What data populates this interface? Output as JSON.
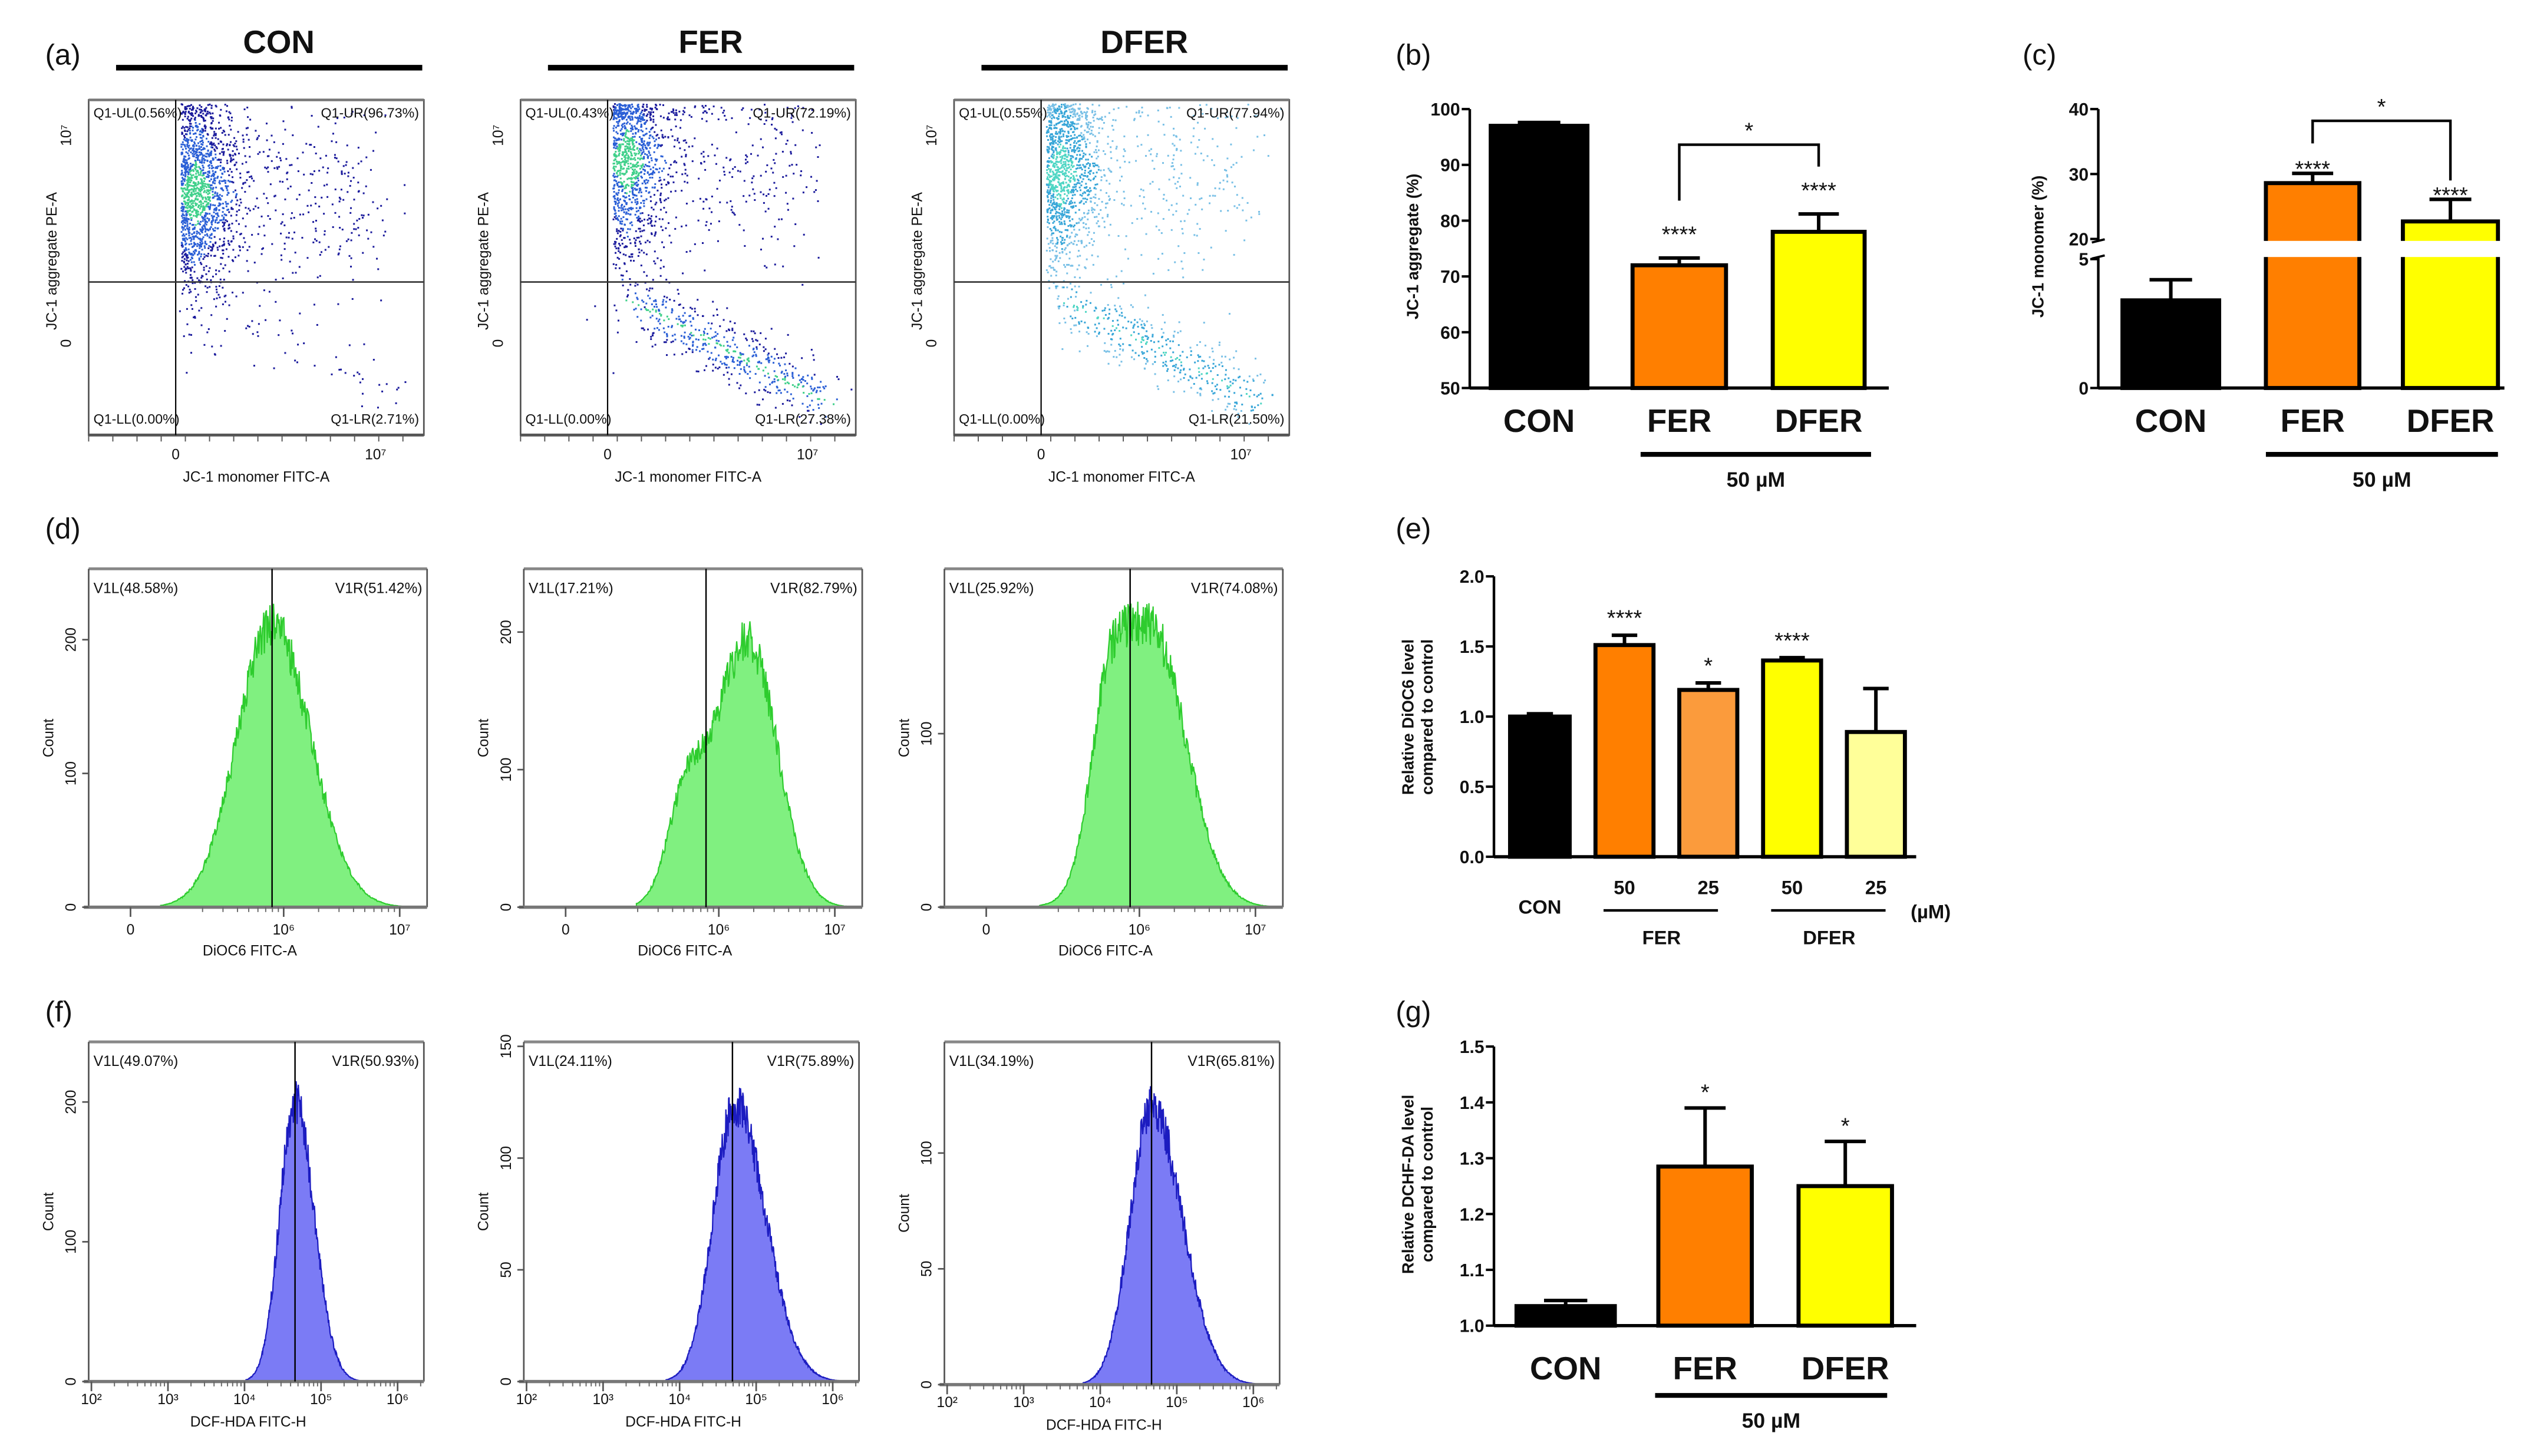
{
  "chart_data": [
    {
      "panel": "(a)",
      "type": "scatter",
      "groups": [
        "CON",
        "FER",
        "DFER"
      ],
      "xlabel": "JC-1 monomer FITC-A",
      "ylabel": "JC-1 aggregate PE-A",
      "x_ticks": [
        "0",
        "10⁷"
      ],
      "y_ticks": [
        "0",
        "10⁷"
      ],
      "plots": [
        {
          "quadrants": {
            "UL": "Q1-UL(0.56%)",
            "UR": "Q1-UR(96.73%)",
            "LL": "Q1-LL(0.00%)",
            "LR": "Q1-LR(2.71%)"
          },
          "percent": {
            "UL": 0.56,
            "UR": 96.73,
            "LL": 0.0,
            "LR": 2.71
          }
        },
        {
          "quadrants": {
            "UL": "Q1-UL(0.43%)",
            "UR": "Q1-UR(72.19%)",
            "LL": "Q1-LL(0.00%)",
            "LR": "Q1-LR(27.38%)"
          },
          "percent": {
            "UL": 0.43,
            "UR": 72.19,
            "LL": 0.0,
            "LR": 27.38
          }
        },
        {
          "quadrants": {
            "UL": "Q1-UL(0.55%)",
            "UR": "Q1-UR(77.94%)",
            "LL": "Q1-LL(0.00%)",
            "LR": "Q1-LR(21.50%)"
          },
          "percent": {
            "UL": 0.55,
            "UR": 77.94,
            "LL": 0.0,
            "LR": 21.5
          }
        }
      ]
    },
    {
      "panel": "(b)",
      "type": "bar",
      "categories": [
        "CON",
        "FER",
        "DFER"
      ],
      "values": [
        97.0,
        72.0,
        78.0
      ],
      "errors": [
        0.6,
        1.3,
        3.2
      ],
      "significance": [
        "",
        "****",
        "****"
      ],
      "colors": [
        "#000000",
        "#ff7f00",
        "#ffff00"
      ],
      "ylabel": "JC-1 aggregate (%)",
      "ylim": [
        50,
        100
      ],
      "yticks": [
        "50",
        "60",
        "70",
        "80",
        "90",
        "100"
      ],
      "bracket": {
        "from": 1,
        "to": 2,
        "label": "*"
      },
      "group_label": "50 µM"
    },
    {
      "panel": "(c)",
      "type": "bar",
      "broken_axis": [
        5,
        20
      ],
      "categories": [
        "CON",
        "FER",
        "DFER"
      ],
      "values": [
        3.4,
        28.6,
        22.7
      ],
      "errors": [
        0.8,
        1.5,
        3.4
      ],
      "significance": [
        "",
        "****",
        "****"
      ],
      "colors": [
        "#000000",
        "#ff7f00",
        "#ffff00"
      ],
      "ylabel": "JC-1 monomer (%)",
      "ylim": [
        0,
        40
      ],
      "yticks": [
        "0",
        "5",
        "20",
        "30",
        "40"
      ],
      "bracket": {
        "from": 1,
        "to": 2,
        "label": "*"
      },
      "group_label": "50 µM"
    },
    {
      "panel": "(d)",
      "type": "histogram",
      "xlabel": "DiOC6 FITC-A",
      "ylabel": "Count",
      "x_ticks": [
        {
          "label": "0",
          "log10": 4.68
        },
        {
          "label": "10⁶",
          "log10": 6
        },
        {
          "label": "10⁷",
          "log10": 7
        }
      ],
      "color": "#80f080",
      "line_color": "#2ecc2e",
      "plots": [
        {
          "left": "V1L(48.58%)",
          "right": "V1R(51.42%)",
          "gate_log10": 5.9,
          "ymax": 253,
          "y_ticks": [
            "0",
            "100",
            "200"
          ],
          "peak_log10": 5.9,
          "peak_count": 211,
          "sigma_left": 0.3,
          "sigma_right": 0.33,
          "shoulder_log10": 5.6,
          "shoulder_count": 0
        },
        {
          "left": "V1L(17.21%)",
          "right": "V1R(82.79%)",
          "gate_log10": 5.89,
          "ymax": 246,
          "y_ticks": [
            "0",
            "100",
            "200"
          ],
          "peak_log10": 6.25,
          "peak_count": 194,
          "sigma_left": 0.3,
          "sigma_right": 0.25,
          "shoulder_log10": 5.7,
          "shoulder_count": 60
        },
        {
          "left": "V1L(25.92%)",
          "right": "V1R(74.08%)",
          "gate_log10": 5.92,
          "ymax": 195,
          "y_ticks": [
            "0",
            "100"
          ],
          "peak_log10": 6.1,
          "peak_count": 160,
          "sigma_left": 0.3,
          "sigma_right": 0.3,
          "shoulder_log10": 5.72,
          "shoulder_count": 70
        }
      ]
    },
    {
      "panel": "(e)",
      "type": "bar",
      "categories": [
        "CON",
        "50",
        "25",
        "50",
        "25"
      ],
      "groups": [
        {
          "label": "FER",
          "members": [
            1,
            2
          ]
        },
        {
          "label": "DFER",
          "members": [
            3,
            4
          ]
        }
      ],
      "unit": "(µM)",
      "values": [
        1.0,
        1.51,
        1.19,
        1.4,
        0.89
      ],
      "errors": [
        0.02,
        0.07,
        0.05,
        0.02,
        0.31
      ],
      "significance": [
        "",
        "****",
        "*",
        "****",
        ""
      ],
      "colors": [
        "#000000",
        "#ff7f00",
        "#fb9b3c",
        "#ffff00",
        "#ffff99"
      ],
      "ylabel": [
        "Relative DiOC6 level",
        "compared to control"
      ],
      "ylim": [
        0,
        2.0
      ],
      "yticks": [
        "0.0",
        "0.5",
        "1.0",
        "1.5",
        "2.0"
      ]
    },
    {
      "panel": "(f)",
      "type": "histogram",
      "xlabel": "DCF-HDA FITC-H",
      "ylabel": "Count",
      "x_ticks": [
        {
          "label": "10²",
          "log10": 2
        },
        {
          "label": "10³",
          "log10": 3
        },
        {
          "label": "10⁴",
          "log10": 4
        },
        {
          "label": "10⁵",
          "log10": 5
        },
        {
          "label": "10⁶",
          "log10": 6
        }
      ],
      "color": "#7b7bf5",
      "line_color": "#1c1cc0",
      "plots": [
        {
          "left": "V1L(49.07%)",
          "right": "V1R(50.93%)",
          "gate_log10": 4.66,
          "ymax": 243,
          "y_ticks": [
            "0",
            "100",
            "200"
          ],
          "peak_log10": 4.66,
          "peak_count": 200,
          "sigma_left": 0.2,
          "sigma_right": 0.25,
          "shoulder_log10": 4.4,
          "shoulder_count": 0
        },
        {
          "left": "V1L(24.11%)",
          "right": "V1R(75.89%)",
          "gate_log10": 4.69,
          "ymax": 152,
          "y_ticks": [
            "0",
            "50",
            "100",
            "150"
          ],
          "peak_log10": 4.72,
          "peak_count": 124,
          "sigma_left": 0.28,
          "sigma_right": 0.4,
          "shoulder_log10": 4.4,
          "shoulder_count": 0
        },
        {
          "left": "V1L(34.19%)",
          "right": "V1R(65.81%)",
          "gate_log10": 4.67,
          "ymax": 148,
          "y_ticks": [
            "0",
            "50",
            "100"
          ],
          "peak_log10": 4.67,
          "peak_count": 120,
          "sigma_left": 0.28,
          "sigma_right": 0.4,
          "shoulder_log10": 4.4,
          "shoulder_count": 0
        }
      ]
    },
    {
      "panel": "(g)",
      "type": "bar",
      "categories": [
        "CON",
        "FER",
        "DFER"
      ],
      "values": [
        1.035,
        1.285,
        1.25
      ],
      "errors": [
        0.01,
        0.105,
        0.08
      ],
      "significance": [
        "",
        "*",
        "*"
      ],
      "colors": [
        "#000000",
        "#ff7f00",
        "#ffff00"
      ],
      "ylabel": [
        "Relative DCHF-DA level",
        "compared to control"
      ],
      "ylim": [
        1.0,
        1.5
      ],
      "yticks": [
        "1.0",
        "1.1",
        "1.2",
        "1.3",
        "1.4",
        "1.5"
      ],
      "group_label": "50 µM"
    }
  ]
}
